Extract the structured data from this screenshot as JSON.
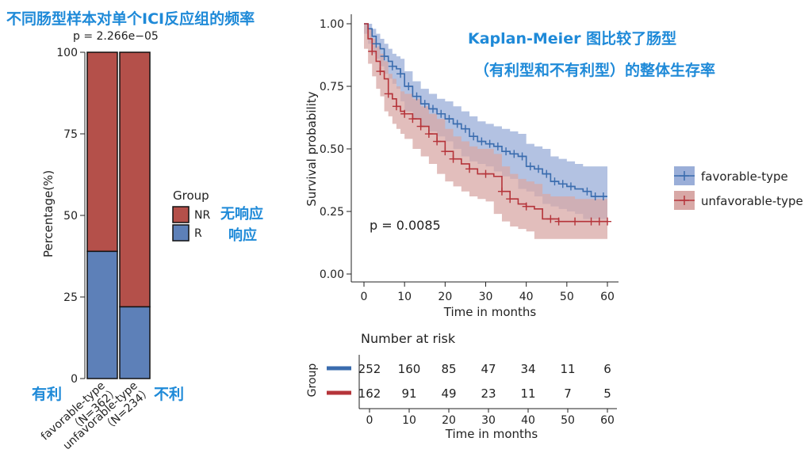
{
  "annotations": {
    "bar_title": "不同肠型样本对单个ICI反应组的频率",
    "km_title_line1": "Kaplan-Meier 图比较了肠型",
    "km_title_line2": "（有利型和不有利型）的整体生存率",
    "nr_note": "无响应",
    "r_note": "响应",
    "fav_note": "有利",
    "unfav_note": "不利"
  },
  "colors": {
    "nr": "#b4504a",
    "r": "#5d80b8",
    "fav_line": "#3a6cae",
    "unfav_line": "#b5343a",
    "fav_band": "#9aaed8",
    "unfav_band": "#d8a8a6",
    "annotation": "#1f8ad8"
  },
  "chart_data": [
    {
      "type": "bar",
      "stacked": true,
      "subtitle": "p = 2.266e−05",
      "ylabel": "Percentage(%)",
      "ylim": [
        0,
        100
      ],
      "yticks": [
        "0",
        "25",
        "50",
        "75",
        "100"
      ],
      "categories": [
        "favorable-type\n（N=362）",
        "unfavorable-type\n（N=234）"
      ],
      "category_lines": [
        [
          "favorable-type",
          "（N=362）"
        ],
        [
          "unfavorable-type",
          "（N=234）"
        ]
      ],
      "series": [
        {
          "name": "R",
          "values": [
            39,
            22
          ]
        },
        {
          "name": "NR",
          "values": [
            61,
            78
          ]
        }
      ],
      "legend": {
        "title": "Group",
        "entries": [
          "NR",
          "R"
        ],
        "placement": "right"
      }
    },
    {
      "type": "line",
      "subtype": "kaplan-meier",
      "xlabel": "Time in months",
      "ylabel": "Survival probability",
      "xlim": [
        0,
        60
      ],
      "ylim": [
        0,
        1
      ],
      "xticks": [
        "0",
        "10",
        "20",
        "30",
        "40",
        "50",
        "60"
      ],
      "yticks": [
        "0.00",
        "0.25",
        "0.50",
        "0.75",
        "1.00"
      ],
      "annotation": "p = 0.0085",
      "legend": {
        "placement": "right"
      },
      "series": [
        {
          "name": "favorable-type",
          "x": [
            0,
            1,
            2,
            3,
            4,
            5,
            6,
            7,
            8,
            9,
            10,
            12,
            14,
            16,
            18,
            20,
            22,
            24,
            26,
            28,
            30,
            32,
            34,
            36,
            38,
            40,
            42,
            44,
            46,
            48,
            50,
            52,
            54,
            56,
            58,
            60
          ],
          "y": [
            1.0,
            0.98,
            0.95,
            0.92,
            0.9,
            0.87,
            0.85,
            0.83,
            0.82,
            0.8,
            0.75,
            0.71,
            0.68,
            0.66,
            0.64,
            0.62,
            0.6,
            0.58,
            0.55,
            0.53,
            0.52,
            0.51,
            0.49,
            0.48,
            0.47,
            0.43,
            0.42,
            0.4,
            0.37,
            0.36,
            0.35,
            0.34,
            0.33,
            0.31,
            0.31,
            0.31
          ],
          "ci_low": [
            1.0,
            0.96,
            0.92,
            0.88,
            0.86,
            0.83,
            0.8,
            0.78,
            0.76,
            0.74,
            0.69,
            0.65,
            0.62,
            0.59,
            0.57,
            0.55,
            0.53,
            0.5,
            0.47,
            0.45,
            0.44,
            0.43,
            0.41,
            0.39,
            0.38,
            0.34,
            0.33,
            0.31,
            0.28,
            0.27,
            0.26,
            0.25,
            0.24,
            0.22,
            0.22,
            0.22
          ],
          "ci_high": [
            1.0,
            1.0,
            0.98,
            0.96,
            0.94,
            0.92,
            0.9,
            0.88,
            0.87,
            0.86,
            0.81,
            0.77,
            0.74,
            0.72,
            0.7,
            0.69,
            0.67,
            0.65,
            0.63,
            0.61,
            0.6,
            0.59,
            0.58,
            0.57,
            0.56,
            0.52,
            0.51,
            0.5,
            0.47,
            0.46,
            0.45,
            0.44,
            0.43,
            0.43,
            0.43,
            0.43
          ],
          "censor_x": [
            3,
            5,
            7,
            9,
            11,
            13,
            15,
            17,
            19,
            21,
            23,
            25,
            27,
            29,
            31,
            33,
            35,
            37,
            39,
            41,
            43,
            45,
            47,
            49,
            51,
            55,
            57,
            59
          ]
        },
        {
          "name": "unfavorable-type",
          "x": [
            0,
            1,
            2,
            3,
            4,
            5,
            6,
            7,
            8,
            9,
            10,
            12,
            14,
            16,
            18,
            20,
            22,
            24,
            26,
            28,
            30,
            32,
            34,
            36,
            38,
            40,
            42,
            44,
            46,
            48,
            50,
            52,
            54,
            56,
            58,
            60
          ],
          "y": [
            1.0,
            0.94,
            0.89,
            0.85,
            0.81,
            0.78,
            0.72,
            0.7,
            0.67,
            0.65,
            0.64,
            0.62,
            0.59,
            0.56,
            0.53,
            0.49,
            0.46,
            0.44,
            0.42,
            0.4,
            0.4,
            0.39,
            0.33,
            0.3,
            0.28,
            0.27,
            0.26,
            0.22,
            0.22,
            0.21,
            0.21,
            0.21,
            0.21,
            0.21,
            0.21,
            0.21
          ],
          "ci_low": [
            1.0,
            0.9,
            0.84,
            0.79,
            0.74,
            0.71,
            0.65,
            0.63,
            0.6,
            0.58,
            0.56,
            0.54,
            0.5,
            0.47,
            0.44,
            0.4,
            0.37,
            0.35,
            0.33,
            0.31,
            0.3,
            0.29,
            0.24,
            0.21,
            0.19,
            0.18,
            0.17,
            0.14,
            0.14,
            0.14,
            0.14,
            0.14,
            0.14,
            0.14,
            0.14,
            0.14
          ],
          "ci_high": [
            1.0,
            0.98,
            0.94,
            0.91,
            0.88,
            0.85,
            0.8,
            0.78,
            0.75,
            0.73,
            0.72,
            0.7,
            0.67,
            0.64,
            0.62,
            0.58,
            0.55,
            0.53,
            0.51,
            0.5,
            0.5,
            0.48,
            0.43,
            0.4,
            0.38,
            0.37,
            0.36,
            0.32,
            0.31,
            0.31,
            0.31,
            0.3,
            0.3,
            0.3,
            0.3,
            0.3
          ],
          "censor_x": [
            2,
            4,
            6,
            8,
            10,
            12,
            14,
            16,
            18,
            20,
            22,
            26,
            30,
            34,
            36,
            40,
            46,
            48,
            52,
            56,
            58,
            60
          ]
        }
      ]
    },
    {
      "type": "table",
      "title": "Number at risk",
      "row_label": "Group",
      "xlabel": "Time in months",
      "columns": [
        "0",
        "10",
        "20",
        "30",
        "40",
        "50",
        "60"
      ],
      "rows": [
        {
          "name": "favorable-type",
          "values": [
            "252",
            "160",
            "85",
            "47",
            "34",
            "11",
            "6"
          ]
        },
        {
          "name": "unfavorable-type",
          "values": [
            "162",
            "91",
            "49",
            "23",
            "11",
            "7",
            "5"
          ]
        }
      ]
    }
  ]
}
